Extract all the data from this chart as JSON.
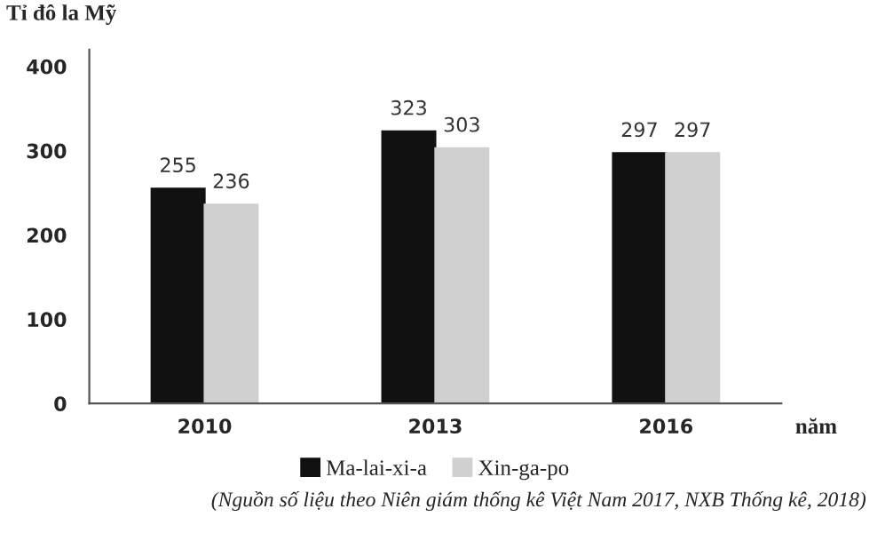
{
  "chart_data": {
    "type": "bar",
    "ylabel": "Tỉ đô la Mỹ",
    "xlabel": "năm",
    "categories": [
      "2010",
      "2013",
      "2016"
    ],
    "series": [
      {
        "name": "Ma-lai-xi-a",
        "color": "#111111",
        "values": [
          255,
          323,
          297
        ]
      },
      {
        "name": "Xin-ga-po",
        "color": "#d0d0d0",
        "values": [
          236,
          303,
          297
        ]
      }
    ],
    "ylim": [
      0,
      420
    ],
    "yticks": [
      0,
      100,
      200,
      300,
      400
    ],
    "grid": false,
    "legend": "bottom",
    "data_labels": true,
    "annotations": [
      "(Nguồn số liệu theo Niên giám thống kê Việt Nam 2017, NXB Thống kê, 2018)"
    ]
  }
}
